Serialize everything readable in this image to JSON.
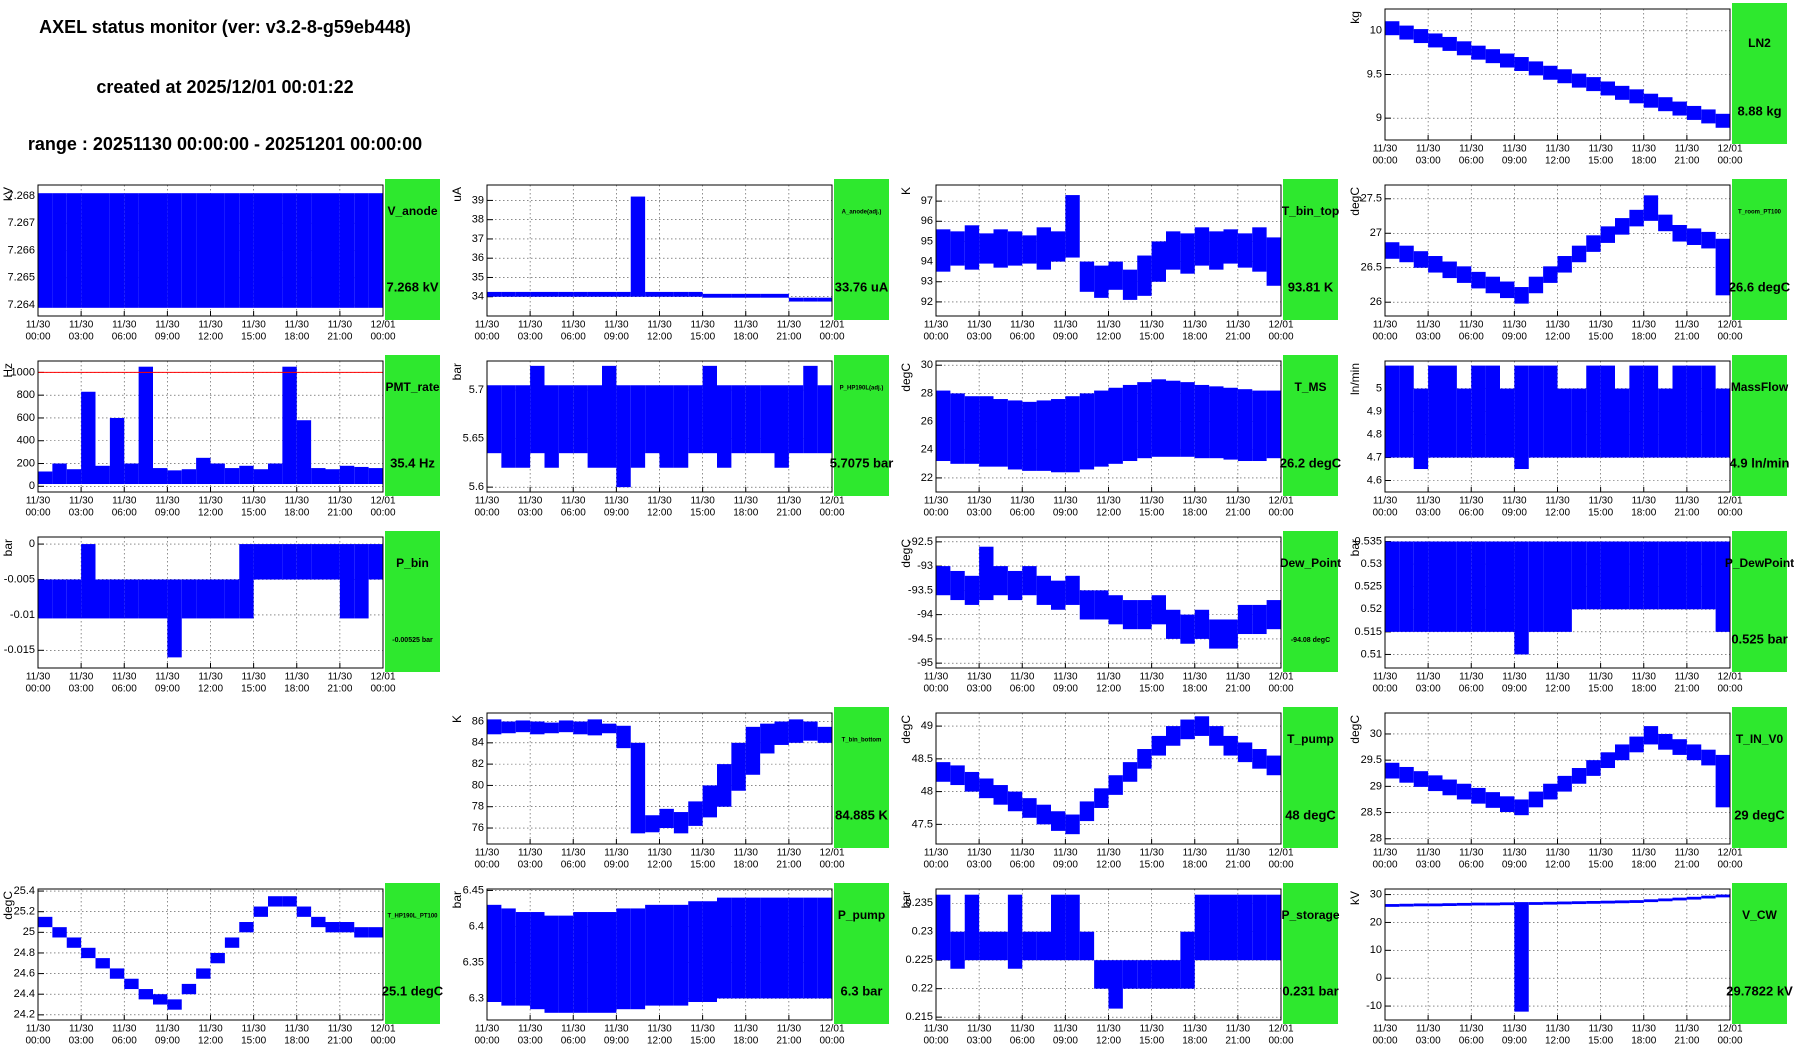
{
  "header": {
    "title": "AXEL status monitor (ver: v3.2-8-g59eb448)",
    "created": "created at 2025/12/01 00:01:22",
    "range": "range : 20251130 00:00:00 - 20251201 00:00:00"
  },
  "style": {
    "band_color": "#0000ff",
    "box_color": "#2ee82e",
    "grid": true
  },
  "time_axis": {
    "xlim": [
      0,
      24
    ],
    "xticks": [
      0,
      3,
      6,
      9,
      12,
      15,
      18,
      21,
      24
    ],
    "dates": [
      "11/30",
      "11/30",
      "11/30",
      "11/30",
      "11/30",
      "11/30",
      "11/30",
      "11/30",
      "12/01"
    ],
    "times": [
      "00:00",
      "03:00",
      "06:00",
      "09:00",
      "12:00",
      "15:00",
      "18:00",
      "21:00",
      "00:00"
    ]
  },
  "chart_data": [
    {
      "type": "range",
      "title": "LN2",
      "reading": "8.88 kg",
      "ylabel": "kg",
      "ylim": [
        8.75,
        10.25
      ],
      "yticks": [
        9,
        9.5,
        10
      ],
      "low": [
        9.95,
        9.9,
        9.86,
        9.81,
        9.77,
        9.72,
        9.67,
        9.63,
        9.58,
        9.54,
        9.49,
        9.44,
        9.4,
        9.35,
        9.31,
        9.26,
        9.21,
        9.17,
        9.12,
        9.08,
        9.03,
        8.98,
        8.94,
        8.89
      ],
      "high": [
        10.11,
        10.06,
        10.02,
        9.97,
        9.93,
        9.88,
        9.83,
        9.79,
        9.74,
        9.7,
        9.65,
        9.6,
        9.56,
        9.51,
        9.47,
        9.42,
        9.37,
        9.33,
        9.28,
        9.24,
        9.19,
        9.14,
        9.1,
        9.05
      ]
    },
    {
      "type": "range",
      "title": "V_anode",
      "reading": "7.268 kV",
      "ylabel": "kV",
      "ylim": [
        7.2636,
        7.2684
      ],
      "yticks": [
        7.264,
        7.265,
        7.266,
        7.267,
        7.268
      ],
      "low": [
        7.2639,
        7.2639,
        7.2639,
        7.2639,
        7.2639,
        7.2639,
        7.2639,
        7.2639,
        7.2639,
        7.2639,
        7.2639,
        7.2639,
        7.2639,
        7.2639,
        7.2639,
        7.2639,
        7.2639,
        7.2639,
        7.2639,
        7.2639,
        7.2639,
        7.2639,
        7.2639,
        7.2639
      ],
      "high": [
        7.2681,
        7.2681,
        7.2681,
        7.2681,
        7.2681,
        7.2681,
        7.2681,
        7.2681,
        7.2681,
        7.2681,
        7.2681,
        7.2681,
        7.2681,
        7.2681,
        7.2681,
        7.2681,
        7.2681,
        7.2681,
        7.2681,
        7.2681,
        7.2681,
        7.2681,
        7.2681,
        7.2681
      ]
    },
    {
      "type": "range",
      "title": "A_anode(adj.)",
      "reading": "33.76 uA",
      "ylabel": "uA",
      "ylim": [
        33,
        39.8
      ],
      "yticks": [
        34,
        35,
        36,
        37,
        38,
        39
      ],
      "low": [
        34.0,
        34.0,
        34.0,
        34.0,
        34.0,
        34.0,
        34.0,
        34.0,
        34.0,
        34.0,
        34.0,
        34.0,
        34.0,
        34.0,
        34.0,
        33.95,
        33.95,
        33.95,
        33.95,
        33.95,
        33.95,
        33.75,
        33.75,
        33.75
      ],
      "high": [
        34.25,
        34.25,
        34.25,
        34.25,
        34.25,
        34.25,
        34.25,
        34.25,
        34.25,
        34.25,
        39.2,
        34.25,
        34.25,
        34.25,
        34.25,
        34.15,
        34.15,
        34.15,
        34.15,
        34.15,
        34.15,
        33.95,
        33.95,
        33.95
      ]
    },
    {
      "type": "range",
      "title": "T_bin_top",
      "reading": "93.81 K",
      "ylabel": "K",
      "ylim": [
        91.3,
        97.8
      ],
      "yticks": [
        92,
        93,
        94,
        95,
        96,
        97
      ],
      "low": [
        93.5,
        93.8,
        93.6,
        93.9,
        93.7,
        93.8,
        93.9,
        93.6,
        94.0,
        94.2,
        92.5,
        92.2,
        92.6,
        92.1,
        92.3,
        93.0,
        93.6,
        93.4,
        93.8,
        93.6,
        93.9,
        93.7,
        93.5,
        92.8
      ],
      "high": [
        95.6,
        95.5,
        95.8,
        95.4,
        95.6,
        95.5,
        95.3,
        95.7,
        95.5,
        97.3,
        94.0,
        93.8,
        94.0,
        93.6,
        94.3,
        95.0,
        95.5,
        95.4,
        95.7,
        95.5,
        95.6,
        95.4,
        95.7,
        95.2
      ]
    },
    {
      "type": "range",
      "title": "T_room_PT100",
      "reading": "26.6 degC",
      "ylabel": "degC",
      "ylim": [
        25.8,
        27.7
      ],
      "yticks": [
        26,
        26.5,
        27,
        27.5
      ],
      "low": [
        26.63,
        26.58,
        26.5,
        26.43,
        26.35,
        26.28,
        26.2,
        26.13,
        26.06,
        25.98,
        26.13,
        26.28,
        26.43,
        26.58,
        26.73,
        26.86,
        26.98,
        27.1,
        27.18,
        27.03,
        26.88,
        26.83,
        26.78,
        26.1
      ],
      "high": [
        26.87,
        26.82,
        26.74,
        26.67,
        26.59,
        26.52,
        26.44,
        26.37,
        26.3,
        26.22,
        26.37,
        26.52,
        26.67,
        26.82,
        26.97,
        27.1,
        27.22,
        27.34,
        27.55,
        27.27,
        27.12,
        27.07,
        27.02,
        26.92
      ]
    },
    {
      "type": "range",
      "title": "PMT_rate",
      "reading": "35.4 Hz",
      "ylabel": "Hz",
      "ylim": [
        -50,
        1100
      ],
      "yticks": [
        0,
        200,
        400,
        600,
        800,
        1000
      ],
      "threshold": 1000,
      "threshold_color": "#ff0000",
      "low": [
        20,
        20,
        20,
        20,
        20,
        20,
        20,
        20,
        20,
        20,
        20,
        20,
        20,
        20,
        20,
        20,
        20,
        20,
        20,
        20,
        20,
        20,
        20,
        20
      ],
      "high": [
        130,
        200,
        150,
        830,
        180,
        600,
        200,
        1050,
        160,
        140,
        150,
        250,
        200,
        160,
        180,
        150,
        200,
        1050,
        580,
        160,
        150,
        180,
        170,
        160
      ]
    },
    {
      "type": "range",
      "title": "P_HP190L(adj.)",
      "reading": "5.7075 bar",
      "ylabel": "bar",
      "ylim": [
        5.595,
        5.73
      ],
      "yticks": [
        5.6,
        5.65,
        5.7
      ],
      "low": [
        5.635,
        5.62,
        5.62,
        5.635,
        5.62,
        5.635,
        5.635,
        5.62,
        5.62,
        5.6,
        5.62,
        5.635,
        5.62,
        5.62,
        5.635,
        5.635,
        5.62,
        5.635,
        5.635,
        5.635,
        5.62,
        5.635,
        5.635,
        5.635
      ],
      "high": [
        5.705,
        5.705,
        5.705,
        5.725,
        5.705,
        5.705,
        5.705,
        5.705,
        5.725,
        5.705,
        5.705,
        5.705,
        5.705,
        5.705,
        5.705,
        5.725,
        5.705,
        5.705,
        5.705,
        5.705,
        5.705,
        5.705,
        5.725,
        5.705
      ]
    },
    {
      "type": "range",
      "title": "T_MS",
      "reading": "26.2 degC",
      "ylabel": "degC",
      "ylim": [
        21,
        30.3
      ],
      "yticks": [
        22,
        24,
        26,
        28,
        30
      ],
      "low": [
        23.2,
        23.0,
        23.0,
        22.8,
        22.8,
        22.6,
        22.5,
        22.5,
        22.4,
        22.4,
        22.6,
        22.8,
        23.0,
        23.2,
        23.4,
        23.5,
        23.5,
        23.5,
        23.4,
        23.4,
        23.3,
        23.2,
        23.2,
        23.4
      ],
      "high": [
        28.2,
        28.0,
        27.8,
        27.8,
        27.6,
        27.5,
        27.4,
        27.5,
        27.6,
        27.8,
        28.0,
        28.2,
        28.4,
        28.6,
        28.8,
        29.0,
        28.9,
        28.8,
        28.6,
        28.5,
        28.4,
        28.3,
        28.2,
        28.2
      ]
    },
    {
      "type": "range",
      "title": "MassFlow",
      "reading": "4.9 ln/min",
      "ylabel": "ln/min",
      "ylim": [
        4.55,
        5.12
      ],
      "yticks": [
        4.6,
        4.7,
        4.8,
        4.9,
        5
      ],
      "low": [
        4.7,
        4.7,
        4.65,
        4.7,
        4.7,
        4.7,
        4.7,
        4.7,
        4.7,
        4.65,
        4.7,
        4.7,
        4.7,
        4.7,
        4.7,
        4.7,
        4.7,
        4.7,
        4.7,
        4.7,
        4.7,
        4.7,
        4.7,
        4.7
      ],
      "high": [
        5.1,
        5.1,
        5.0,
        5.1,
        5.1,
        5.0,
        5.1,
        5.1,
        5.0,
        5.1,
        5.1,
        5.1,
        5.0,
        5.0,
        5.1,
        5.1,
        5.0,
        5.1,
        5.1,
        5.0,
        5.1,
        5.1,
        5.1,
        5.0
      ]
    },
    {
      "type": "range",
      "title": "P_bin",
      "reading": "-0.00525 bar",
      "ylabel": "bar",
      "ylim": [
        -0.0175,
        0.001
      ],
      "yticks": [
        0,
        -0.005,
        -0.01,
        -0.015
      ],
      "low": [
        -0.0105,
        -0.0105,
        -0.0105,
        -0.0105,
        -0.0105,
        -0.0105,
        -0.0105,
        -0.0105,
        -0.0105,
        -0.016,
        -0.0105,
        -0.0105,
        -0.0105,
        -0.0105,
        -0.0105,
        -0.005,
        -0.005,
        -0.005,
        -0.005,
        -0.005,
        -0.005,
        -0.0105,
        -0.0105,
        -0.005
      ],
      "high": [
        -0.005,
        -0.005,
        -0.005,
        0,
        -0.005,
        -0.005,
        -0.005,
        -0.005,
        -0.005,
        -0.005,
        -0.005,
        -0.005,
        -0.005,
        -0.005,
        0,
        0,
        0,
        0,
        0,
        0,
        0,
        0,
        0,
        0
      ]
    },
    {
      "type": "range",
      "title": "Dew_Point",
      "reading": "-94.08 degC",
      "ylabel": "degC",
      "ylim": [
        -95.1,
        -92.4
      ],
      "yticks": [
        -95,
        -94.5,
        -94,
        -93.5,
        -93,
        -92.5
      ],
      "low": [
        -93.6,
        -93.7,
        -93.8,
        -93.7,
        -93.6,
        -93.7,
        -93.6,
        -93.8,
        -93.9,
        -93.8,
        -94.1,
        -94.1,
        -94.2,
        -94.3,
        -94.3,
        -94.2,
        -94.5,
        -94.6,
        -94.5,
        -94.7,
        -94.7,
        -94.4,
        -94.4,
        -94.3
      ],
      "high": [
        -93.0,
        -93.1,
        -93.2,
        -92.6,
        -93.0,
        -93.1,
        -93.0,
        -93.2,
        -93.3,
        -93.2,
        -93.5,
        -93.5,
        -93.6,
        -93.7,
        -93.7,
        -93.6,
        -93.9,
        -94.0,
        -93.9,
        -94.1,
        -94.1,
        -93.8,
        -93.8,
        -93.7
      ]
    },
    {
      "type": "range",
      "title": "P_DewPoint",
      "reading": "0.525 bar",
      "ylabel": "bar",
      "ylim": [
        0.507,
        0.536
      ],
      "yticks": [
        0.51,
        0.515,
        0.52,
        0.525,
        0.53,
        0.535
      ],
      "low": [
        0.515,
        0.515,
        0.515,
        0.515,
        0.515,
        0.515,
        0.515,
        0.515,
        0.515,
        0.51,
        0.515,
        0.515,
        0.515,
        0.52,
        0.52,
        0.52,
        0.52,
        0.52,
        0.52,
        0.52,
        0.52,
        0.52,
        0.52,
        0.515
      ],
      "high": [
        0.535,
        0.535,
        0.535,
        0.535,
        0.535,
        0.535,
        0.535,
        0.535,
        0.535,
        0.535,
        0.535,
        0.535,
        0.535,
        0.535,
        0.535,
        0.535,
        0.535,
        0.535,
        0.535,
        0.535,
        0.535,
        0.535,
        0.535,
        0.535
      ]
    },
    {
      "type": "range",
      "title": "T_bin_bottom",
      "reading": "84.885 K",
      "ylabel": "K",
      "ylim": [
        74.5,
        86.8
      ],
      "yticks": [
        76,
        78,
        80,
        82,
        84,
        86
      ],
      "low": [
        84.8,
        84.9,
        85.0,
        84.8,
        84.9,
        85.0,
        84.8,
        84.7,
        84.9,
        83.5,
        75.5,
        75.6,
        76.0,
        75.5,
        76.2,
        77.0,
        78.0,
        79.5,
        81.0,
        83.0,
        83.8,
        84.0,
        84.2,
        84.0
      ],
      "high": [
        86.2,
        86.0,
        86.1,
        86.0,
        85.9,
        86.1,
        86.0,
        86.2,
        85.8,
        85.6,
        84.0,
        77.2,
        77.8,
        77.5,
        78.5,
        80.0,
        82.0,
        84.0,
        85.5,
        85.8,
        86.0,
        86.2,
        86.0,
        85.5
      ]
    },
    {
      "type": "range",
      "title": "T_pump",
      "reading": "48 degC",
      "ylabel": "degC",
      "ylim": [
        47.2,
        49.2
      ],
      "yticks": [
        47.5,
        48,
        48.5,
        49
      ],
      "low": [
        48.15,
        48.1,
        48.0,
        47.9,
        47.8,
        47.7,
        47.6,
        47.5,
        47.4,
        47.35,
        47.55,
        47.75,
        47.95,
        48.15,
        48.35,
        48.55,
        48.7,
        48.8,
        48.85,
        48.7,
        48.55,
        48.45,
        48.35,
        48.25
      ],
      "high": [
        48.45,
        48.4,
        48.3,
        48.2,
        48.1,
        48.0,
        47.9,
        47.8,
        47.7,
        47.65,
        47.85,
        48.05,
        48.25,
        48.45,
        48.65,
        48.85,
        49.0,
        49.1,
        49.15,
        49.0,
        48.85,
        48.75,
        48.65,
        48.55
      ]
    },
    {
      "type": "range",
      "title": "T_IN_V0",
      "reading": "29 degC",
      "ylabel": "degC",
      "ylim": [
        27.9,
        30.4
      ],
      "yticks": [
        28,
        28.5,
        29,
        29.5,
        30
      ],
      "low": [
        29.15,
        29.07,
        28.99,
        28.91,
        28.83,
        28.75,
        28.67,
        28.59,
        28.51,
        28.45,
        28.6,
        28.75,
        28.9,
        29.05,
        29.2,
        29.35,
        29.5,
        29.65,
        29.8,
        29.7,
        29.6,
        29.5,
        29.4,
        28.6
      ],
      "high": [
        29.45,
        29.37,
        29.29,
        29.21,
        29.13,
        29.05,
        28.97,
        28.89,
        28.81,
        28.75,
        28.9,
        29.05,
        29.2,
        29.35,
        29.5,
        29.65,
        29.8,
        29.95,
        30.15,
        30.0,
        29.9,
        29.8,
        29.7,
        29.6
      ]
    },
    {
      "type": "range",
      "title": "T_HP190L_PT100",
      "reading": "25.1 degC",
      "ylabel": "degC",
      "ylim": [
        24.15,
        25.42
      ],
      "yticks": [
        24.2,
        24.4,
        24.6,
        24.8,
        25,
        25.2,
        25.4
      ],
      "low": [
        25.05,
        24.95,
        24.85,
        24.75,
        24.65,
        24.55,
        24.45,
        24.35,
        24.3,
        24.25,
        24.4,
        24.55,
        24.7,
        24.85,
        25.0,
        25.15,
        25.25,
        25.25,
        25.15,
        25.05,
        25.0,
        25.0,
        24.95,
        24.95
      ],
      "high": [
        25.15,
        25.05,
        24.95,
        24.85,
        24.75,
        24.65,
        24.55,
        24.45,
        24.4,
        24.35,
        24.5,
        24.65,
        24.8,
        24.95,
        25.1,
        25.25,
        25.35,
        25.35,
        25.25,
        25.15,
        25.1,
        25.1,
        25.05,
        25.05
      ]
    },
    {
      "type": "range",
      "title": "P_pump",
      "reading": "6.3 bar",
      "ylabel": "bar",
      "ylim": [
        6.27,
        6.452
      ],
      "yticks": [
        6.3,
        6.35,
        6.4,
        6.45
      ],
      "low": [
        6.295,
        6.29,
        6.29,
        6.285,
        6.28,
        6.28,
        6.28,
        6.28,
        6.28,
        6.285,
        6.285,
        6.29,
        6.29,
        6.29,
        6.295,
        6.295,
        6.3,
        6.3,
        6.3,
        6.3,
        6.3,
        6.3,
        6.3,
        6.3
      ],
      "high": [
        6.43,
        6.425,
        6.42,
        6.42,
        6.415,
        6.415,
        6.42,
        6.42,
        6.42,
        6.425,
        6.425,
        6.43,
        6.43,
        6.43,
        6.435,
        6.435,
        6.44,
        6.44,
        6.44,
        6.44,
        6.44,
        6.44,
        6.44,
        6.44
      ]
    },
    {
      "type": "range",
      "title": "P_storage",
      "reading": "0.231 bar",
      "ylabel": "bar",
      "ylim": [
        0.2145,
        0.2375
      ],
      "yticks": [
        0.215,
        0.22,
        0.225,
        0.23,
        0.235
      ],
      "low": [
        0.225,
        0.2235,
        0.225,
        0.225,
        0.225,
        0.2235,
        0.225,
        0.225,
        0.225,
        0.225,
        0.225,
        0.22,
        0.2165,
        0.22,
        0.22,
        0.22,
        0.22,
        0.22,
        0.225,
        0.225,
        0.225,
        0.225,
        0.225,
        0.225
      ],
      "high": [
        0.2365,
        0.23,
        0.2365,
        0.23,
        0.23,
        0.2365,
        0.23,
        0.23,
        0.2365,
        0.2365,
        0.23,
        0.225,
        0.225,
        0.225,
        0.225,
        0.225,
        0.225,
        0.23,
        0.2365,
        0.2365,
        0.2365,
        0.2365,
        0.2365,
        0.2365
      ]
    },
    {
      "type": "range",
      "title": "V_CW",
      "reading": "29.7822 kV",
      "ylabel": "kV",
      "ylim": [
        -15,
        32
      ],
      "yticks": [
        -10,
        0,
        10,
        20,
        30
      ],
      "low": [
        25.6,
        25.7,
        25.8,
        25.8,
        25.9,
        26.0,
        26.1,
        26.1,
        26.2,
        -12,
        26.3,
        26.4,
        26.5,
        26.6,
        26.7,
        26.8,
        26.9,
        27.0,
        27.3,
        27.6,
        27.9,
        28.2,
        28.6,
        29.0
      ],
      "high": [
        26.6,
        26.7,
        26.8,
        26.8,
        26.9,
        27.0,
        27.1,
        27.1,
        27.2,
        27.3,
        27.3,
        27.4,
        27.5,
        27.6,
        27.7,
        27.8,
        27.9,
        28.0,
        28.3,
        28.6,
        28.9,
        29.2,
        29.6,
        30.0
      ]
    }
  ]
}
